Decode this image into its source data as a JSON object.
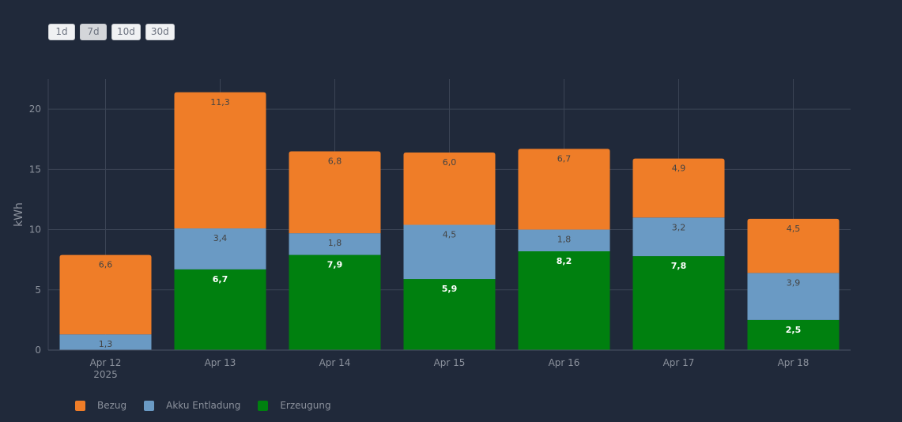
{
  "range_buttons": [
    {
      "label": "1d",
      "active": false
    },
    {
      "label": "7d",
      "active": true
    },
    {
      "label": "10d",
      "active": false
    },
    {
      "label": "30d",
      "active": false
    }
  ],
  "colors": {
    "background": "#20293a",
    "grid": "#3b4455",
    "axis_text": "#8b919c"
  },
  "chart_data": {
    "type": "bar",
    "stacked": true,
    "categories": [
      "Apr 12",
      "Apr 13",
      "Apr 14",
      "Apr 15",
      "Apr 16",
      "Apr 17",
      "Apr 18"
    ],
    "x_tick_sublabel": "2025",
    "ylabel": "kWh",
    "xlabel": "",
    "ylim": [
      0,
      22.5
    ],
    "y_ticks": [
      0,
      5,
      10,
      15,
      20
    ],
    "grid": true,
    "legend_position": "bottom-left",
    "series": [
      {
        "name": "Erzeugung",
        "color": "#00800f",
        "label_color": "#ffffff",
        "values": [
          null,
          6.7,
          7.9,
          5.9,
          8.2,
          7.8,
          2.5
        ],
        "labels": [
          "",
          "6,7",
          "7,9",
          "5,9",
          "8,2",
          "7,8",
          "2,5"
        ]
      },
      {
        "name": "Akku Entladung",
        "color": "#6a9ac4",
        "label_color": "#444444",
        "values": [
          1.3,
          3.4,
          1.8,
          4.5,
          1.8,
          3.2,
          3.9
        ],
        "labels": [
          "1,3",
          "3,4",
          "1,8",
          "4,5",
          "1,8",
          "3,2",
          "3,9"
        ]
      },
      {
        "name": "Bezug",
        "color": "#ef7d28",
        "label_color": "#444444",
        "values": [
          6.6,
          11.3,
          6.8,
          6.0,
          6.7,
          4.9,
          4.5
        ],
        "labels": [
          "6,6",
          "11,3",
          "6,8",
          "6,0",
          "6,7",
          "4,9",
          "4,5"
        ]
      }
    ],
    "legend_order": [
      "Bezug",
      "Akku Entladung",
      "Erzeugung"
    ]
  }
}
